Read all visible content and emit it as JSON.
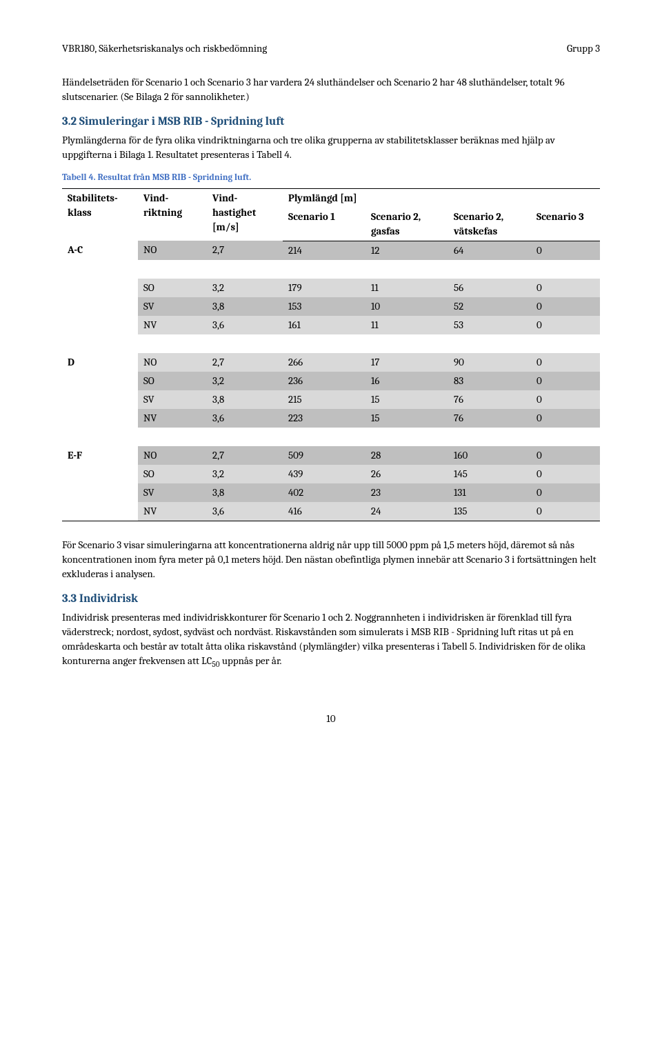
{
  "header": {
    "left": "VBR180, Säkerhetsriskanalys och riskbedömning",
    "right": "Grupp 3"
  },
  "intro": "Händelseträden för Scenario 1 och Scenario 3 har vardera 24 sluthändelser och Scenario 2 har 48 sluthändelser, totalt 96 slutscenarier. (Se Bilaga 2 för sannolikheter.)",
  "sec32": {
    "heading": "3.2  Simuleringar i MSB RIB - Spridning luft",
    "body": "Plymlängderna för de fyra olika vindriktningarna och tre olika grupperna av stabilitetsklasser beräknas med hjälp av uppgifterna i Bilaga 1. Resultatet presenteras i Tabell 4."
  },
  "tableCaption": "Tabell 4. Resultat från MSB RIB - Spridning luft.",
  "tableHeaders": {
    "klass": "Stabilitets-klass",
    "riktning": "Vind-riktning",
    "hastighet": "Vind-hastighet [m/s]",
    "plymlangd": "Plymlängd [m]",
    "s1": "Scenario 1",
    "s2g": "Scenario 2, gasfas",
    "s2v": "Scenario 2, vätskefas",
    "s3": "Scenario 3"
  },
  "groups": [
    {
      "klass": "A-C",
      "rows": [
        {
          "r": "NO",
          "h": "2,7",
          "s1": "214",
          "s2g": "12",
          "s2v": "64",
          "s3": "0",
          "shade": "shade1"
        },
        {
          "r": "SO",
          "h": "3,2",
          "s1": "179",
          "s2g": "11",
          "s2v": "56",
          "s3": "0",
          "shade": "shade2"
        },
        {
          "r": "SV",
          "h": "3,8",
          "s1": "153",
          "s2g": "10",
          "s2v": "52",
          "s3": "0",
          "shade": "shade1"
        },
        {
          "r": "NV",
          "h": "3,6",
          "s1": "161",
          "s2g": "11",
          "s2v": "53",
          "s3": "0",
          "shade": "shade2"
        }
      ]
    },
    {
      "klass": "D",
      "rows": [
        {
          "r": "NO",
          "h": "2,7",
          "s1": "266",
          "s2g": "17",
          "s2v": "90",
          "s3": "0",
          "shade": "shade2"
        },
        {
          "r": "SO",
          "h": "3,2",
          "s1": "236",
          "s2g": "16",
          "s2v": "83",
          "s3": "0",
          "shade": "shade1"
        },
        {
          "r": "SV",
          "h": "3,8",
          "s1": "215",
          "s2g": "15",
          "s2v": "76",
          "s3": "0",
          "shade": "shade2"
        },
        {
          "r": "NV",
          "h": "3,6",
          "s1": "223",
          "s2g": "15",
          "s2v": "76",
          "s3": "0",
          "shade": "shade1"
        }
      ]
    },
    {
      "klass": "E-F",
      "rows": [
        {
          "r": "NO",
          "h": "2,7",
          "s1": "509",
          "s2g": "28",
          "s2v": "160",
          "s3": "0",
          "shade": "shade1"
        },
        {
          "r": "SO",
          "h": "3,2",
          "s1": "439",
          "s2g": "26",
          "s2v": "145",
          "s3": "0",
          "shade": "shade2"
        },
        {
          "r": "SV",
          "h": "3,8",
          "s1": "402",
          "s2g": "23",
          "s2v": "131",
          "s3": "0",
          "shade": "shade1"
        },
        {
          "r": "NV",
          "h": "3,6",
          "s1": "416",
          "s2g": "24",
          "s2v": "135",
          "s3": "0",
          "shade": "shade2"
        }
      ]
    }
  ],
  "afterTable": "För Scenario 3 visar simuleringarna att koncentrationerna aldrig når upp till 5000 ppm på 1,5 meters höjd, däremot så nås koncentrationen inom fyra meter på 0,1 meters höjd. Den nästan obefintliga plymen innebär att Scenario 3 i fortsättningen helt exkluderas i analysen.",
  "sec33": {
    "heading": "3.3  Individrisk",
    "body_pre": "Individrisk presenteras med individriskkonturer för Scenario 1 och 2. Noggrannheten i individrisken är förenklad till fyra väderstreck; nordost, sydost, sydväst och nordväst. Riskavstånden som simulerats i MSB RIB - Spridning luft ritas ut på en områdeskarta och består av totalt åtta olika riskavstånd (plymlängder) vilka presenteras i Tabell 5. Individrisken för de olika konturerna anger frekvensen att LC",
    "sub": "50",
    "body_post": " uppnås per år."
  },
  "pageNum": "10",
  "style": {
    "heading_color": "#1f4e79",
    "caption_color": "#4472c4",
    "shade1": "#bfbfbf",
    "shade2": "#d9d9d9",
    "background": "#ffffff"
  }
}
